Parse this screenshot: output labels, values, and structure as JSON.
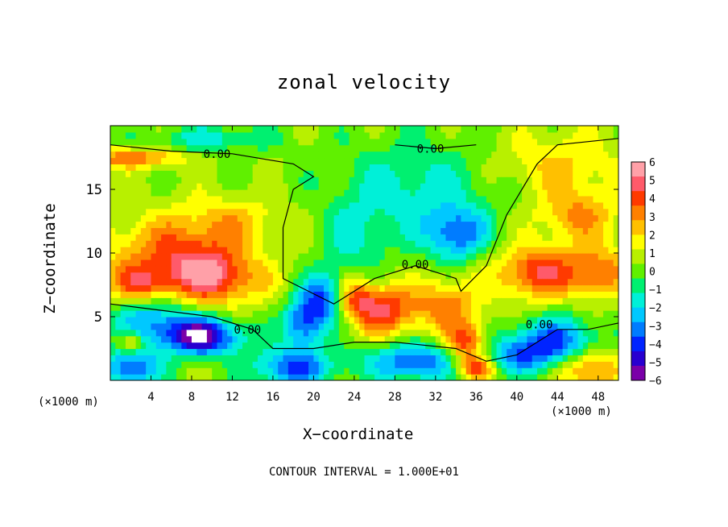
{
  "chart_data": {
    "type": "heatmap",
    "title": "zonal velocity",
    "xlabel": "X−coordinate",
    "ylabel": "Z−coordinate",
    "x_unit_label": "(×1000 m)",
    "x_ticks": [
      "4",
      "8",
      "12",
      "16",
      "20",
      "24",
      "28",
      "32",
      "36",
      "40",
      "44",
      "48"
    ],
    "x_tick_values": [
      4,
      8,
      12,
      16,
      20,
      24,
      28,
      32,
      36,
      40,
      44,
      48
    ],
    "y_ticks": [
      "5",
      "10",
      "15"
    ],
    "y_tick_values": [
      5,
      10,
      15
    ],
    "xlim": [
      0,
      50
    ],
    "ylim": [
      0,
      20
    ],
    "colorbar_ticks": [
      "6",
      "5",
      "4",
      "3",
      "2",
      "1",
      "0",
      "−1",
      "−2",
      "−3",
      "−4",
      "−5",
      "−6"
    ],
    "colorbar_range": [
      -6,
      6
    ],
    "contour_labels": [
      {
        "text": "0.00",
        "x": 10.5,
        "y": 17.8
      },
      {
        "text": "0.00",
        "x": 31.5,
        "y": 18.2
      },
      {
        "text": "0.00",
        "x": 30.0,
        "y": 9.1
      },
      {
        "text": "0.00",
        "x": 13.5,
        "y": 4.0
      },
      {
        "text": "0.00",
        "x": 42.2,
        "y": 4.4
      }
    ],
    "footer": "CONTOUR INTERVAL = 1.000E+01",
    "colors": [
      "#7a00a8",
      "#2800d0",
      "#0024ff",
      "#007cff",
      "#00c8ff",
      "#00f0d8",
      "#00f070",
      "#60f000",
      "#b8f000",
      "#ffff00",
      "#ffc000",
      "#ff8000",
      "#ff3a00",
      "#ff5a6a",
      "#ffa0a8"
    ]
  }
}
